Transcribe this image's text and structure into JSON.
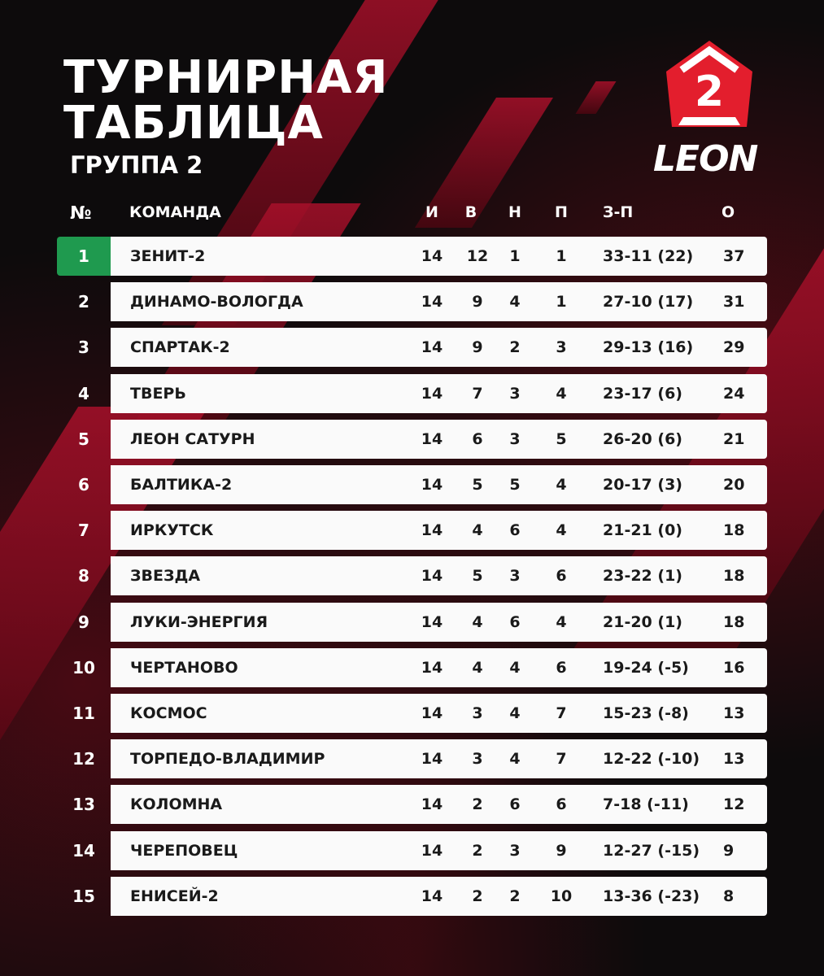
{
  "header": {
    "title_line1": "ТУРНИРНАЯ",
    "title_line2": "ТАБЛИЦА",
    "subtitle": "ГРУППА 2"
  },
  "logo": {
    "badge_number": "2",
    "brand": "LEON",
    "brand_color": "#e31e2d"
  },
  "colors": {
    "leader": "#1f9a4f",
    "accent": "#a8102a"
  },
  "columns": {
    "rank": "№",
    "team": "КОМАНДА",
    "played": "И",
    "won": "В",
    "drawn": "Н",
    "lost": "П",
    "goals": "З-П",
    "points": "О"
  },
  "rows": [
    {
      "rank": "1",
      "team": "ЗЕНИТ-2",
      "played": "14",
      "won": "12",
      "drawn": "1",
      "lost": "1",
      "goals": "33-11 (22)",
      "points": "37"
    },
    {
      "rank": "2",
      "team": "ДИНАМО-ВОЛОГДА",
      "played": "14",
      "won": "9",
      "drawn": "4",
      "lost": "1",
      "goals": "27-10 (17)",
      "points": "31"
    },
    {
      "rank": "3",
      "team": "СПАРТАК-2",
      "played": "14",
      "won": "9",
      "drawn": "2",
      "lost": "3",
      "goals": "29-13 (16)",
      "points": "29"
    },
    {
      "rank": "4",
      "team": "ТВЕРЬ",
      "played": "14",
      "won": "7",
      "drawn": "3",
      "lost": "4",
      "goals": "23-17 (6)",
      "points": "24"
    },
    {
      "rank": "5",
      "team": "ЛЕОН САТУРН",
      "played": "14",
      "won": "6",
      "drawn": "3",
      "lost": "5",
      "goals": "26-20 (6)",
      "points": "21"
    },
    {
      "rank": "6",
      "team": "БАЛТИКА-2",
      "played": "14",
      "won": "5",
      "drawn": "5",
      "lost": "4",
      "goals": "20-17 (3)",
      "points": "20"
    },
    {
      "rank": "7",
      "team": "ИРКУТСК",
      "played": "14",
      "won": "4",
      "drawn": "6",
      "lost": "4",
      "goals": "21-21 (0)",
      "points": "18"
    },
    {
      "rank": "8",
      "team": "ЗВЕЗДА",
      "played": "14",
      "won": "5",
      "drawn": "3",
      "lost": "6",
      "goals": "23-22 (1)",
      "points": "18"
    },
    {
      "rank": "9",
      "team": "ЛУКИ-ЭНЕРГИЯ",
      "played": "14",
      "won": "4",
      "drawn": "6",
      "lost": "4",
      "goals": "21-20 (1)",
      "points": "18"
    },
    {
      "rank": "10",
      "team": "ЧЕРТАНОВО",
      "played": "14",
      "won": "4",
      "drawn": "4",
      "lost": "6",
      "goals": "19-24 (-5)",
      "points": "16"
    },
    {
      "rank": "11",
      "team": "КОСМОС",
      "played": "14",
      "won": "3",
      "drawn": "4",
      "lost": "7",
      "goals": "15-23 (-8)",
      "points": "13"
    },
    {
      "rank": "12",
      "team": "ТОРПЕДО-ВЛАДИМИР",
      "played": "14",
      "won": "3",
      "drawn": "4",
      "lost": "7",
      "goals": "12-22 (-10)",
      "points": "13"
    },
    {
      "rank": "13",
      "team": "КОЛОМНА",
      "played": "14",
      "won": "2",
      "drawn": "6",
      "lost": "6",
      "goals": "7-18 (-11)",
      "points": "12"
    },
    {
      "rank": "14",
      "team": "ЧЕРЕПОВЕЦ",
      "played": "14",
      "won": "2",
      "drawn": "3",
      "lost": "9",
      "goals": "12-27 (-15)",
      "points": "9"
    },
    {
      "rank": "15",
      "team": "ЕНИСЕЙ-2",
      "played": "14",
      "won": "2",
      "drawn": "2",
      "lost": "10",
      "goals": "13-36 (-23)",
      "points": "8"
    }
  ]
}
